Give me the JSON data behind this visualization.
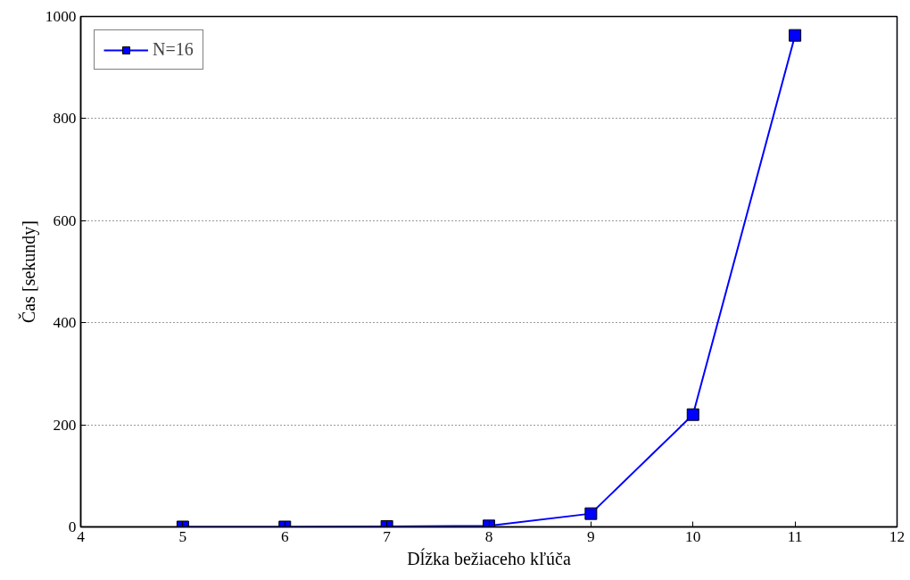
{
  "chart_data": {
    "type": "line",
    "xlabel": "Dĺžka bežiaceho kľúča",
    "ylabel": "Čas [sekundy]",
    "x": [
      5,
      6,
      7,
      8,
      9,
      10,
      11
    ],
    "series": [
      {
        "name": "N=16",
        "color": "#0000ff",
        "values": [
          0,
          0,
          1,
          2,
          26,
          220,
          963
        ]
      }
    ],
    "xlim": [
      4,
      12
    ],
    "xticks": [
      4,
      5,
      6,
      7,
      8,
      9,
      10,
      11,
      12
    ],
    "ylim": [
      0,
      1000
    ],
    "yticks": [
      0,
      200,
      400,
      600,
      800,
      1000
    ],
    "grid": "y",
    "legend": "top left",
    "marker": "square",
    "line_style": "solid"
  }
}
